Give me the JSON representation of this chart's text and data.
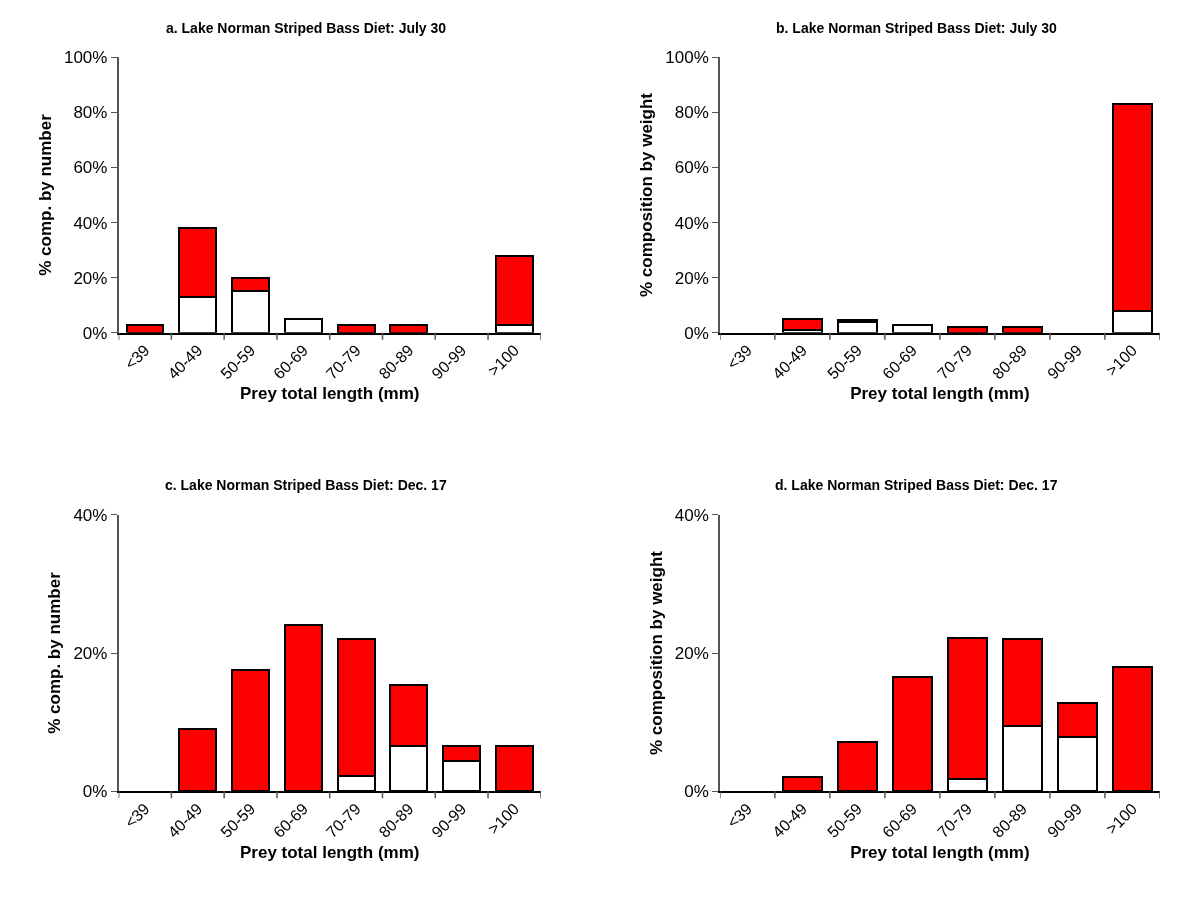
{
  "chart_data": [
    {
      "type": "bar",
      "title": "a. Lake Norman Striped Bass Diet: July 30",
      "xlabel": "Prey total length (mm)",
      "ylabel": "% comp. by number",
      "categories": [
        "<39",
        "40-49",
        "50-59",
        "60-69",
        "70-79",
        "80-89",
        "90-99",
        ">100"
      ],
      "stacked": true,
      "series": [
        {
          "color": "#ffffff",
          "values": [
            null,
            13,
            15,
            5,
            null,
            null,
            null,
            3
          ]
        },
        {
          "color": "#ff0000",
          "values": [
            3,
            25,
            5,
            null,
            3,
            3,
            null,
            25
          ]
        }
      ],
      "ylim": [
        0,
        100
      ],
      "yticks": [
        {
          "value": 0,
          "label": "0%"
        },
        {
          "value": 20,
          "label": "20%"
        },
        {
          "value": 40,
          "label": "40%"
        },
        {
          "value": 60,
          "label": "60%"
        },
        {
          "value": 80,
          "label": "80%"
        },
        {
          "value": 100,
          "label": "100%"
        }
      ]
    },
    {
      "type": "bar",
      "title": "b. Lake Norman Striped Bass Diet: July 30",
      "xlabel": "Prey total length (mm)",
      "ylabel": "% composition by weight",
      "categories": [
        "<39",
        "40-49",
        "50-59",
        "60-69",
        "70-79",
        "80-89",
        "90-99",
        ">100"
      ],
      "stacked": true,
      "series": [
        {
          "color": "#ffffff",
          "values": [
            null,
            1,
            4,
            3,
            null,
            null,
            null,
            8
          ]
        },
        {
          "color": "#ff0000",
          "values": [
            null,
            4,
            0.5,
            null,
            2,
            2,
            null,
            75
          ]
        }
      ],
      "ylim": [
        0,
        100
      ],
      "yticks": [
        {
          "value": 0,
          "label": "0%"
        },
        {
          "value": 20,
          "label": "20%"
        },
        {
          "value": 40,
          "label": "40%"
        },
        {
          "value": 60,
          "label": "60%"
        },
        {
          "value": 80,
          "label": "80%"
        },
        {
          "value": 100,
          "label": "100%"
        }
      ]
    },
    {
      "type": "bar",
      "title": "c. Lake Norman Striped Bass Diet: Dec. 17",
      "xlabel": "Prey total length (mm)",
      "ylabel": "% comp. by number",
      "categories": [
        "<39",
        "40-49",
        "50-59",
        "60-69",
        "70-79",
        "80-89",
        "90-99",
        ">100"
      ],
      "stacked": true,
      "series": [
        {
          "color": "#ffffff",
          "values": [
            null,
            null,
            null,
            null,
            2.2,
            6.6,
            4.4,
            null
          ]
        },
        {
          "color": "#ff0000",
          "values": [
            null,
            9,
            17.5,
            24,
            19.8,
            8.8,
            2.2,
            6.6
          ]
        }
      ],
      "ylim": [
        0,
        40
      ],
      "yticks": [
        {
          "value": 0,
          "label": "0%"
        },
        {
          "value": 20,
          "label": "20%"
        },
        {
          "value": 40,
          "label": "40%"
        }
      ]
    },
    {
      "type": "bar",
      "title": "d. Lake Norman Striped Bass Diet: Dec. 17",
      "xlabel": "Prey total length (mm)",
      "ylabel": "% composition by weight",
      "categories": [
        "<39",
        "40-49",
        "50-59",
        "60-69",
        "70-79",
        "80-89",
        "90-99",
        ">100"
      ],
      "stacked": true,
      "series": [
        {
          "color": "#ffffff",
          "values": [
            null,
            null,
            null,
            null,
            1.8,
            9.4,
            7.8,
            null
          ]
        },
        {
          "color": "#ff0000",
          "values": [
            null,
            2,
            7.2,
            16.6,
            20.4,
            12.6,
            5,
            18
          ]
        }
      ],
      "ylim": [
        0,
        40
      ],
      "yticks": [
        {
          "value": 0,
          "label": "0%"
        },
        {
          "value": 20,
          "label": "20%"
        },
        {
          "value": 40,
          "label": "40%"
        }
      ]
    }
  ]
}
